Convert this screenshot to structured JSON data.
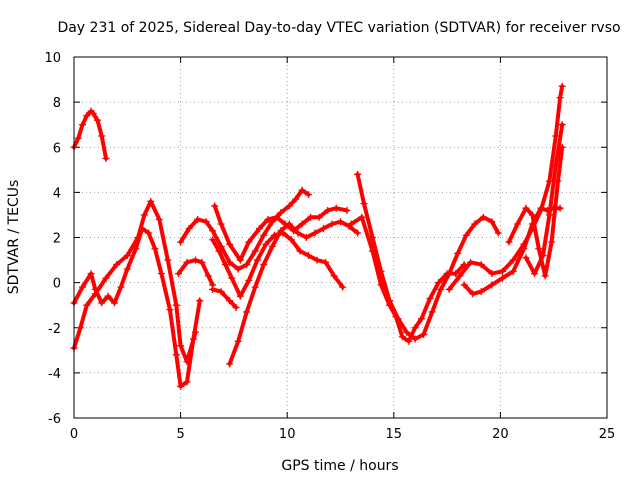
{
  "chart_data": {
    "type": "scatter",
    "title": "Day 231 of 2025, Sidereal Day-to-day VTEC variation (SDTVAR) for receiver rvso",
    "xlabel": "GPS time / hours",
    "ylabel": "SDTVAR / TECUs",
    "xlim": [
      0,
      25
    ],
    "ylim": [
      -6,
      10
    ],
    "x_ticks": [
      0,
      5,
      10,
      15,
      20,
      25
    ],
    "x_tick_labels": [
      "0",
      "5",
      "10",
      "15",
      "20",
      "25"
    ],
    "y_ticks": [
      -6,
      -4,
      -2,
      0,
      2,
      4,
      6,
      8,
      10
    ],
    "y_tick_labels": [
      "-6",
      "-4",
      "-2",
      "0",
      "2",
      "4",
      "6",
      "8",
      "10"
    ],
    "grid": true,
    "marker": "+",
    "color": "#ff0000",
    "series": [
      {
        "name": "s1",
        "x": [
          0.0,
          0.2,
          0.4,
          0.6,
          0.8,
          0.9,
          1.1,
          1.3,
          1.5
        ],
        "y": [
          6.0,
          6.4,
          7.0,
          7.4,
          7.6,
          7.5,
          7.2,
          6.5,
          5.5
        ]
      },
      {
        "name": "s2",
        "x": [
          0.0,
          0.3,
          0.6,
          1.0,
          1.5,
          2.0,
          2.5,
          3.0,
          3.3,
          3.6,
          4.0,
          4.4,
          4.8,
          5.0,
          5.3,
          5.7
        ],
        "y": [
          -2.9,
          -2.0,
          -1.0,
          -0.5,
          0.2,
          0.8,
          1.2,
          2.0,
          3.0,
          3.6,
          2.8,
          1.0,
          -1.0,
          -2.8,
          -3.5,
          -2.2
        ]
      },
      {
        "name": "s3",
        "x": [
          0.0,
          0.4,
          0.8,
          1.0,
          1.3,
          1.6,
          1.9,
          2.2,
          2.5,
          2.9,
          3.2,
          3.5,
          3.8,
          4.1,
          4.5,
          4.8,
          5.0,
          5.3,
          5.6,
          5.9
        ],
        "y": [
          -0.9,
          -0.2,
          0.4,
          -0.3,
          -0.9,
          -0.6,
          -0.9,
          -0.2,
          0.6,
          1.5,
          2.4,
          2.2,
          1.5,
          0.4,
          -1.2,
          -3.2,
          -4.6,
          -4.4,
          -2.5,
          -0.8
        ]
      },
      {
        "name": "s4",
        "x": [
          4.9,
          5.3,
          5.7,
          6.0,
          6.3,
          6.5
        ],
        "y": [
          0.4,
          0.9,
          1.0,
          0.9,
          0.3,
          -0.1
        ]
      },
      {
        "name": "s5",
        "x": [
          5.0,
          5.4,
          5.8,
          6.2,
          6.5,
          6.9,
          7.3,
          7.7,
          8.1,
          8.5,
          8.9,
          9.3,
          9.7,
          10.1,
          10.4,
          10.7,
          11.0
        ],
        "y": [
          1.8,
          2.4,
          2.8,
          2.7,
          2.3,
          1.6,
          0.9,
          0.6,
          0.8,
          1.4,
          2.1,
          2.7,
          3.1,
          3.4,
          3.7,
          4.1,
          3.9
        ]
      },
      {
        "name": "s6",
        "x": [
          6.6,
          6.9,
          7.3,
          7.8,
          8.2,
          8.7,
          9.1,
          9.5,
          9.9,
          10.3,
          10.7,
          11.1,
          11.5,
          11.9,
          12.3,
          12.8
        ],
        "y": [
          3.4,
          2.6,
          1.7,
          1.0,
          1.8,
          2.4,
          2.8,
          2.9,
          2.6,
          2.3,
          2.6,
          2.9,
          2.9,
          3.2,
          3.3,
          3.2
        ]
      },
      {
        "name": "s7",
        "x": [
          6.5,
          6.8,
          7.1,
          7.4,
          7.8,
          8.2,
          8.6,
          9.0,
          9.4,
          9.8,
          10.2,
          10.6,
          11.0,
          11.4,
          11.8,
          12.2,
          12.6
        ],
        "y": [
          1.9,
          1.4,
          0.8,
          0.2,
          -0.6,
          0.1,
          1.0,
          1.7,
          2.1,
          2.2,
          1.9,
          1.4,
          1.2,
          1.0,
          0.9,
          0.3,
          -0.2
        ]
      },
      {
        "name": "s8",
        "x": [
          6.5,
          6.9,
          7.3,
          7.6
        ],
        "y": [
          -0.3,
          -0.4,
          -0.8,
          -1.1
        ]
      },
      {
        "name": "s9",
        "x": [
          7.3,
          7.7,
          8.1,
          8.5,
          8.9,
          9.3,
          9.7,
          10.1,
          10.5,
          10.9,
          11.3,
          11.7,
          12.1,
          12.5,
          12.9,
          13.3
        ],
        "y": [
          -3.6,
          -2.6,
          -1.3,
          -0.2,
          0.8,
          1.6,
          2.3,
          2.6,
          2.2,
          2.0,
          2.2,
          2.4,
          2.6,
          2.7,
          2.5,
          2.2
        ]
      },
      {
        "name": "s10",
        "x": [
          13.3,
          13.6,
          14.0,
          14.4,
          14.8,
          15.2,
          15.6,
          16.0,
          16.4,
          16.8,
          17.2,
          17.6,
          18.0,
          18.4,
          18.8,
          19.2,
          19.6,
          19.9
        ],
        "y": [
          4.8,
          3.5,
          2.0,
          0.5,
          -0.8,
          -1.6,
          -2.2,
          -2.5,
          -2.3,
          -1.3,
          -0.3,
          0.4,
          1.3,
          2.1,
          2.6,
          2.9,
          2.7,
          2.2
        ]
      },
      {
        "name": "s11",
        "x": [
          13.0,
          13.5,
          14.0,
          14.4,
          14.8,
          15.1,
          15.4,
          15.7,
          16.0,
          16.3,
          16.7,
          17.1,
          17.5,
          17.9,
          18.3
        ],
        "y": [
          2.6,
          2.9,
          1.4,
          -0.1,
          -1.0,
          -1.5,
          -2.4,
          -2.6,
          -2.0,
          -1.6,
          -0.7,
          0.0,
          0.4,
          0.4,
          0.8
        ]
      },
      {
        "name": "s12",
        "x": [
          17.6,
          18.1,
          18.6,
          19.1,
          19.6,
          20.1,
          20.6,
          21.1,
          21.5,
          21.9,
          22.3,
          22.6,
          22.8,
          22.9
        ],
        "y": [
          -0.3,
          0.3,
          0.9,
          0.8,
          0.4,
          0.5,
          1.0,
          1.7,
          2.4,
          3.2,
          4.5,
          6.5,
          8.2,
          8.7
        ]
      },
      {
        "name": "s13",
        "x": [
          18.3,
          18.7,
          19.1,
          19.6,
          20.1,
          20.6,
          21.1,
          21.5,
          21.9,
          22.2,
          22.5,
          22.8
        ],
        "y": [
          -0.1,
          -0.5,
          -0.4,
          -0.1,
          0.2,
          0.5,
          1.5,
          2.6,
          3.3,
          3.2,
          3.3,
          3.3
        ]
      },
      {
        "name": "s14",
        "x": [
          20.4,
          20.8,
          21.2,
          21.5,
          21.8,
          22.1,
          22.4,
          22.7,
          22.9
        ],
        "y": [
          1.8,
          2.6,
          3.3,
          3.0,
          1.5,
          0.3,
          1.8,
          4.5,
          6.0
        ]
      },
      {
        "name": "s15",
        "x": [
          21.2,
          21.6,
          22.0,
          22.3,
          22.6,
          22.9
        ],
        "y": [
          1.1,
          0.4,
          1.2,
          3.0,
          5.2,
          7.0
        ]
      }
    ]
  }
}
